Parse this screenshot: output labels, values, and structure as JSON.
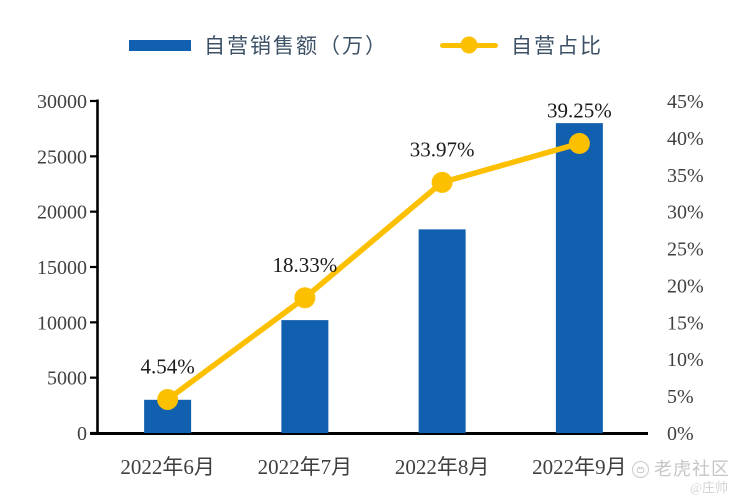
{
  "legend": {
    "items": [
      {
        "label": "自营销售额（万）",
        "type": "bar",
        "color": "#1160AF"
      },
      {
        "label": "自营占比",
        "type": "line",
        "color": "#FCC000"
      }
    ]
  },
  "watermark": {
    "community": "老虎社区",
    "author": "@庄帅"
  },
  "chart_data": {
    "type": "bar+line combo",
    "categories": [
      "2022年6月",
      "2022年7月",
      "2022年8月",
      "2022年9月"
    ],
    "series": [
      {
        "name": "自营销售额（万）",
        "type": "bar",
        "axis": "left",
        "color": "#1160AF",
        "values": [
          3000,
          10200,
          18400,
          28000
        ]
      },
      {
        "name": "自营占比",
        "type": "line",
        "axis": "right",
        "color": "#FCC000",
        "values": [
          4.54,
          18.33,
          33.97,
          39.25
        ],
        "labels": [
          "4.54%",
          "18.33%",
          "33.97%",
          "39.25%"
        ]
      }
    ],
    "left_axis": {
      "min": 0,
      "max": 30000,
      "step": 5000,
      "ticks": [
        "0",
        "5000",
        "10000",
        "15000",
        "20000",
        "25000",
        "30000"
      ]
    },
    "right_axis": {
      "min": 0,
      "max": 45,
      "step": 5,
      "ticks": [
        "0%",
        "5%",
        "10%",
        "15%",
        "20%",
        "25%",
        "30%",
        "35%",
        "40%",
        "45%"
      ]
    },
    "grid": "off",
    "legend_position": "top-center",
    "text_color_axis": "#404040",
    "text_color_datalabel": "#1a1a1a"
  }
}
